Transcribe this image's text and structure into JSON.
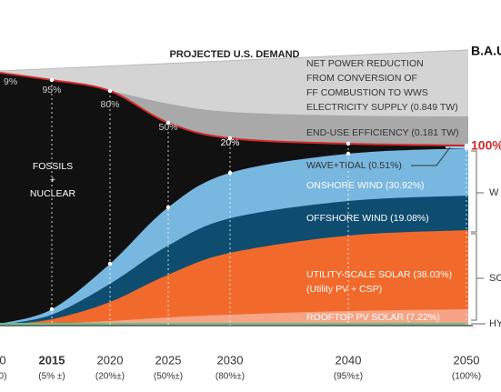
{
  "header": {
    "title": "PROJECTED U.S. DEMAND",
    "bau": "B.A.U",
    "hundred": "100%"
  },
  "annotations": {
    "net_reduction": [
      "NET POWER REDUCTION",
      "FROM CONVERSION OF",
      "FF COMBUSTION TO WWS",
      "ELECTRICITY SUPPLY (0.849 TW)"
    ],
    "end_use": "END-USE EFFICIENCY (0.181 TW)",
    "fossils": [
      "FOSSILS",
      "+",
      "NUCLEAR"
    ],
    "wave": "WAVE+TIDAL (0.51%)",
    "onshore": "ONSHORE WIND (30.92%)",
    "offshore": "OFFSHORE WIND (19.08%)",
    "utility": [
      "UTILITY-SCALE SOLAR (38.03%)",
      "(Utility PV + CSP)"
    ],
    "rooftop": "ROOFTOP PV SOLAR (7.22%)",
    "right": [
      "W",
      "SO",
      "HY"
    ]
  },
  "curve_labels": [
    "9%",
    "95%",
    "80%",
    "50%",
    "20%"
  ],
  "years": [
    "0",
    "2015",
    "2020",
    "2025",
    "2030",
    "2040",
    "2050"
  ],
  "shares": [
    "0)",
    "(5% ±)",
    "(20%±)",
    "(50%±)",
    "(80%±)",
    "(95%±)",
    "(100%)"
  ]
}
